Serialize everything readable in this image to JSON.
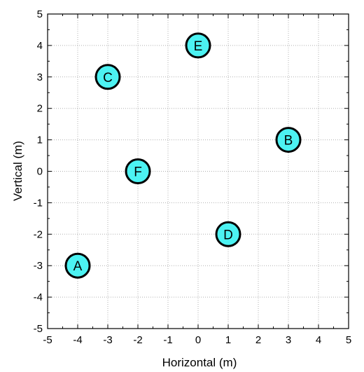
{
  "chart_data": {
    "type": "scatter",
    "xlabel": "Horizontal (m)",
    "ylabel": "Vertical (m)",
    "xlim": [
      -5,
      5
    ],
    "ylim": [
      -5,
      5
    ],
    "xticks": [
      -5,
      -4,
      -3,
      -2,
      -1,
      0,
      1,
      2,
      3,
      4,
      5
    ],
    "yticks": [
      -5,
      -4,
      -3,
      -2,
      -1,
      0,
      1,
      2,
      3,
      4,
      5
    ],
    "grid": true,
    "marker_color": "#4cf2f2",
    "points": [
      {
        "label": "A",
        "x": -4,
        "y": -3
      },
      {
        "label": "B",
        "x": 3,
        "y": 1
      },
      {
        "label": "C",
        "x": -3,
        "y": 3
      },
      {
        "label": "D",
        "x": 1,
        "y": -2
      },
      {
        "label": "E",
        "x": 0,
        "y": 4
      },
      {
        "label": "F",
        "x": -2,
        "y": 0
      }
    ]
  }
}
